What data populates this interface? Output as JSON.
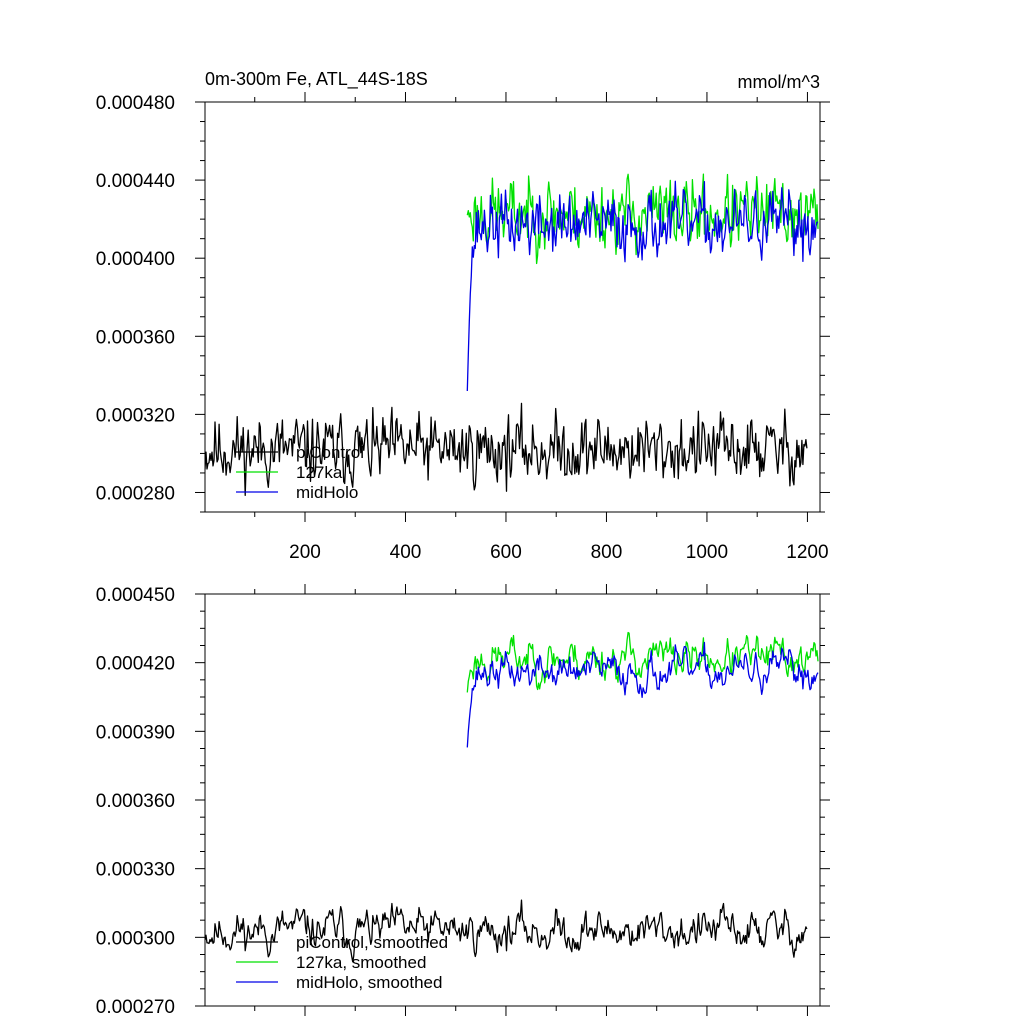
{
  "chart_data": [
    {
      "type": "line",
      "title": "0m-300m Fe, ATL_44S-18S",
      "units": "mmol/m^3",
      "xlim": [
        1,
        1225
      ],
      "ylim": [
        0.00027,
        0.00048
      ],
      "xticks": [
        200,
        400,
        600,
        800,
        1000,
        1200
      ],
      "xtick_labels": [
        "200",
        "400",
        "600",
        "800",
        "1000",
        "1200"
      ],
      "yticks": [
        0.00028,
        0.00032,
        0.00036,
        0.0004,
        0.00044,
        0.00048
      ],
      "ytick_labels": [
        "0.000280",
        "0.000320",
        "0.000360",
        "0.000400",
        "0.000440",
        "0.000480"
      ],
      "grid": false,
      "legend_position": "bottom-left",
      "series": [
        {
          "name": "piControl",
          "color": "#000000",
          "x_start": 1,
          "x_end": 1200,
          "baseline": 0.000302,
          "amplitude": 1e-05,
          "seed": 11
        },
        {
          "name": "127ka",
          "color": "#00e000",
          "x_start": 523,
          "x_end": 1222,
          "baseline": 0.000423,
          "amplitude": 1.05e-05,
          "start_value": 0.000422,
          "seed": 23
        },
        {
          "name": "midHolo",
          "color": "#0000e6",
          "x_start": 523,
          "x_end": 1222,
          "baseline": 0.000417,
          "amplitude": 9.5e-06,
          "start_value": 0.000332,
          "seed": 37
        }
      ]
    },
    {
      "type": "line",
      "title": "",
      "xlim": [
        1,
        1225
      ],
      "ylim": [
        0.00027,
        0.00045
      ],
      "xticks": [
        200,
        400,
        600,
        800,
        1000,
        1200
      ],
      "yticks": [
        0.00027,
        0.0003,
        0.00033,
        0.00036,
        0.00039,
        0.00042,
        0.00045
      ],
      "ytick_labels": [
        "0.000270",
        "0.000300",
        "0.000330",
        "0.000360",
        "0.000390",
        "0.000420",
        "0.000450"
      ],
      "grid": false,
      "legend_position": "bottom-left",
      "series": [
        {
          "name": "piControl, smoothed",
          "color": "#000000",
          "x_start": 1,
          "x_end": 1200,
          "baseline": 0.000303,
          "amplitude": 5.5e-06,
          "seed": 11
        },
        {
          "name": "127ka, smoothed",
          "color": "#00e000",
          "x_start": 523,
          "x_end": 1222,
          "baseline": 0.000422,
          "amplitude": 5.5e-06,
          "start_value": 0.000407,
          "seed": 23
        },
        {
          "name": "midHolo, smoothed",
          "color": "#0000e6",
          "x_start": 523,
          "x_end": 1222,
          "baseline": 0.000416,
          "amplitude": 5e-06,
          "start_value": 0.000383,
          "seed": 37
        }
      ]
    }
  ]
}
